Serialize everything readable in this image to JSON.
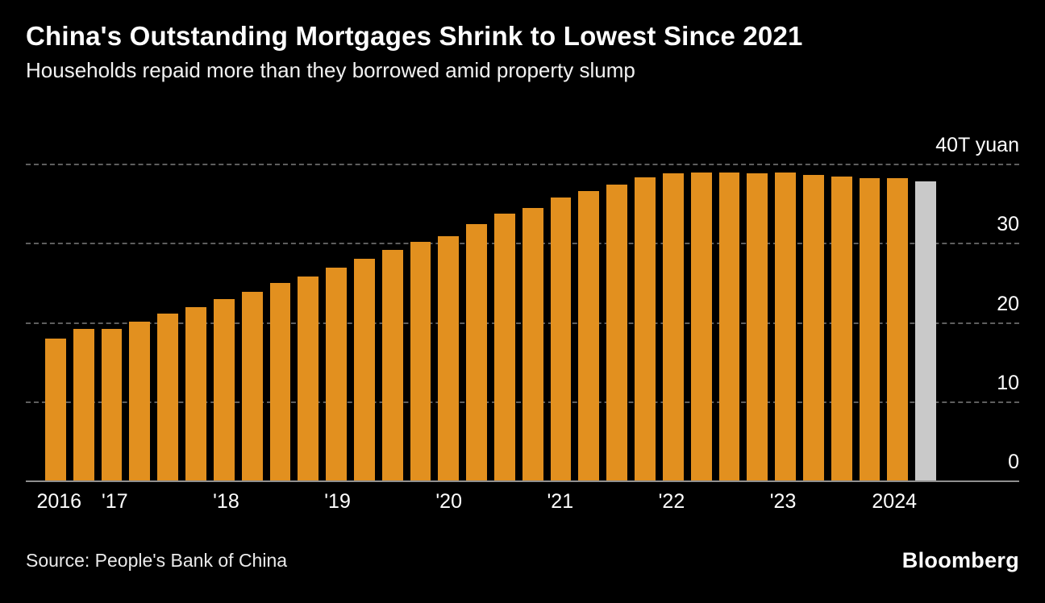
{
  "header": {
    "title": "China's Outstanding Mortgages Shrink to Lowest Since 2021",
    "subtitle": "Households repaid more than they borrowed amid property slump"
  },
  "chart_data": {
    "type": "bar",
    "title": "China's Outstanding Mortgages Shrink to Lowest Since 2021",
    "subtitle": "Households repaid more than they borrowed amid property slump",
    "ylabel": "40T yuan",
    "ylim": [
      0,
      40
    ],
    "grid": "dashed horizontal",
    "categories": [
      "2016 Q3",
      "2016 Q4",
      "2017 Q1",
      "2017 Q2",
      "2017 Q3",
      "2017 Q4",
      "2018 Q1",
      "2018 Q2",
      "2018 Q3",
      "2018 Q4",
      "2019 Q1",
      "2019 Q2",
      "2019 Q3",
      "2019 Q4",
      "2020 Q1",
      "2020 Q2",
      "2020 Q3",
      "2020 Q4",
      "2021 Q1",
      "2021 Q2",
      "2021 Q3",
      "2021 Q4",
      "2022 Q1",
      "2022 Q2",
      "2022 Q3",
      "2022 Q4",
      "2023 Q1",
      "2023 Q2",
      "2023 Q3",
      "2023 Q4",
      "2024 Q1",
      "2024 Q2"
    ],
    "values": [
      17.9,
      19.1,
      19.1,
      20.1,
      21.1,
      21.9,
      22.9,
      23.8,
      24.9,
      25.8,
      26.9,
      28.0,
      29.1,
      30.1,
      30.9,
      32.4,
      33.7,
      34.4,
      35.7,
      36.6,
      37.4,
      38.3,
      38.8,
      38.9,
      38.9,
      38.8,
      38.9,
      38.6,
      38.4,
      38.2,
      38.2,
      37.8
    ],
    "bar_color": "#E2901F",
    "highlight_color": "#C9C9C9",
    "highlight_index": 31,
    "y_ticks": [
      {
        "value": 40,
        "label": "40T yuan"
      },
      {
        "value": 30,
        "label": "30"
      },
      {
        "value": 20,
        "label": "20"
      },
      {
        "value": 10,
        "label": "10"
      },
      {
        "value": 0,
        "label": "0"
      }
    ],
    "x_ticks": [
      {
        "label": "2016",
        "bar_index": 0
      },
      {
        "label": "'17",
        "bar_index": 2
      },
      {
        "label": "'18",
        "bar_index": 6
      },
      {
        "label": "'19",
        "bar_index": 10
      },
      {
        "label": "'20",
        "bar_index": 14
      },
      {
        "label": "'21",
        "bar_index": 18
      },
      {
        "label": "'22",
        "bar_index": 22
      },
      {
        "label": "'23",
        "bar_index": 26
      },
      {
        "label": "2024",
        "bar_index": 30
      }
    ]
  },
  "footer": {
    "source": "Source: People's Bank of China",
    "logo": "Bloomberg"
  }
}
